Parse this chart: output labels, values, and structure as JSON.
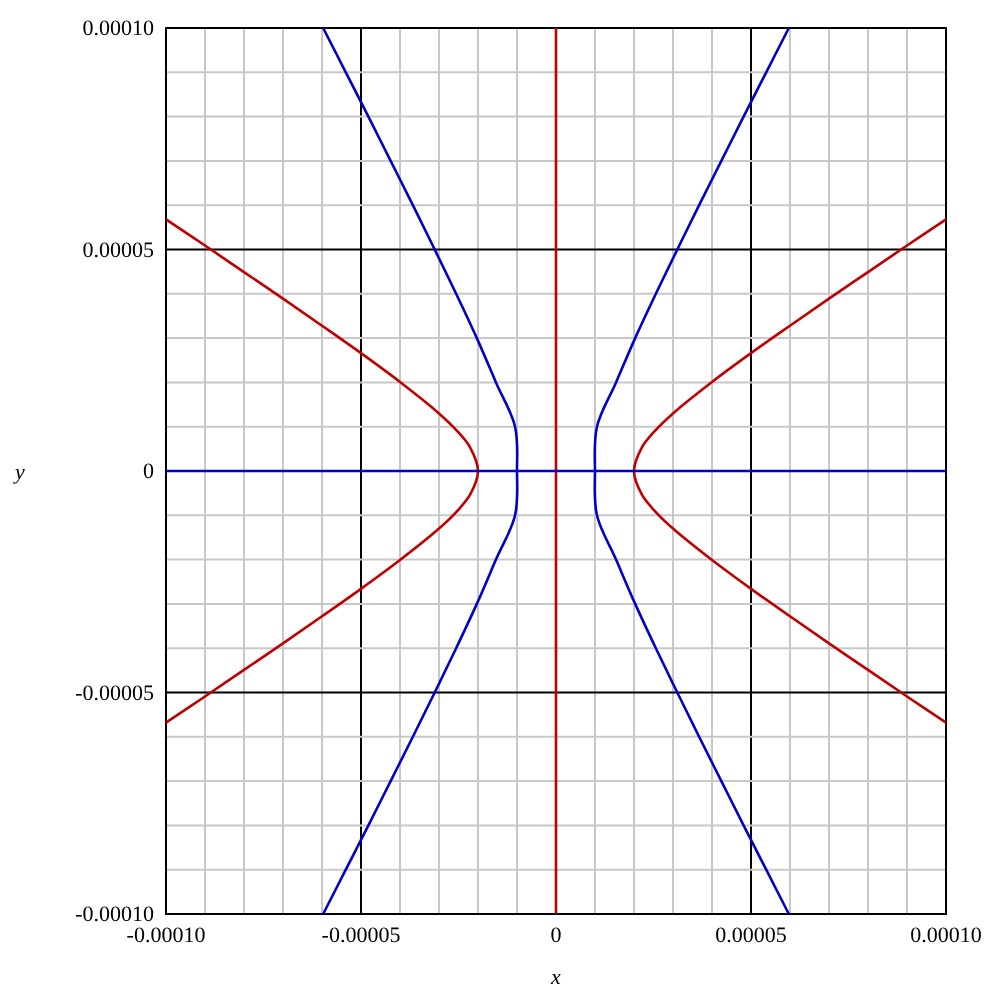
{
  "chart_data": {
    "type": "line",
    "xlabel": "x",
    "ylabel": "y",
    "xlim": [
      -0.0001,
      0.0001
    ],
    "ylim": [
      -0.0001,
      0.0001
    ],
    "xticks": [
      {
        "value": -0.0001,
        "label": "-0.00010"
      },
      {
        "value": -9e-05,
        "label": null
      },
      {
        "value": -8e-05,
        "label": null
      },
      {
        "value": -7e-05,
        "label": null
      },
      {
        "value": -6e-05,
        "label": null
      },
      {
        "value": -5e-05,
        "label": "-0.00005"
      },
      {
        "value": -4e-05,
        "label": null
      },
      {
        "value": -3e-05,
        "label": null
      },
      {
        "value": -2e-05,
        "label": null
      },
      {
        "value": -1e-05,
        "label": null
      },
      0,
      {
        "value": 1e-05,
        "label": null
      },
      {
        "value": 2e-05,
        "label": null
      },
      {
        "value": 3e-05,
        "label": null
      },
      {
        "value": 4e-05,
        "label": null
      },
      {
        "value": 5e-05,
        "label": "0.00005"
      },
      {
        "value": 6e-05,
        "label": null
      },
      {
        "value": 7e-05,
        "label": null
      },
      {
        "value": 8e-05,
        "label": null
      },
      {
        "value": 9e-05,
        "label": null
      },
      {
        "value": 0.0001,
        "label": "0.00010"
      }
    ],
    "yticks": [
      {
        "value": -0.0001,
        "label": "-0.00010"
      },
      {
        "value": -9e-05,
        "label": null
      },
      {
        "value": -8e-05,
        "label": null
      },
      {
        "value": -7e-05,
        "label": null
      },
      {
        "value": -6e-05,
        "label": null
      },
      {
        "value": -5e-05,
        "label": "-0.00005"
      },
      {
        "value": -4e-05,
        "label": null
      },
      {
        "value": -3e-05,
        "label": null
      },
      {
        "value": -2e-05,
        "label": null
      },
      {
        "value": -1e-05,
        "label": null
      },
      0,
      {
        "value": 1e-05,
        "label": null
      },
      {
        "value": 2e-05,
        "label": null
      },
      {
        "value": 3e-05,
        "label": null
      },
      {
        "value": 4e-05,
        "label": null
      },
      {
        "value": 5e-05,
        "label": "0.00005"
      },
      {
        "value": 6e-05,
        "label": null
      },
      {
        "value": 7e-05,
        "label": null
      },
      {
        "value": 8e-05,
        "label": null
      },
      {
        "value": 9e-05,
        "label": null
      },
      {
        "value": 0.0001,
        "label": "0.00010"
      }
    ],
    "grid": true,
    "marker": "none",
    "line_style": "solid",
    "series": [
      {
        "color": "#c00000",
        "x": [
          -0.0001,
          -9e-05,
          -8e-05,
          -7e-05,
          -6e-05,
          -5e-05,
          -4e-05,
          -3e-05,
          -2.5e-05,
          -2.2e-05,
          -2e-05,
          -2.2e-05,
          -2.5e-05,
          -3e-05,
          -4e-05,
          -5e-05,
          -6e-05,
          -7e-05,
          -8e-05,
          -9e-05,
          -0.0001
        ],
        "values": [
          5.68e-05,
          5.09e-05,
          4.49e-05,
          3.89e-05,
          3.28e-05,
          2.66e-05,
          2.01e-05,
          1.3e-05,
          8.7e-06,
          5.3e-06,
          0,
          -5.3e-06,
          -8.7e-06,
          -1.3e-05,
          -2.01e-05,
          -2.66e-05,
          -3.28e-05,
          -3.89e-05,
          -4.49e-05,
          -5.09e-05,
          -5.68e-05
        ]
      },
      {
        "color": "#c00000",
        "x": [
          0.0001,
          9e-05,
          8e-05,
          7e-05,
          6e-05,
          5e-05,
          4e-05,
          3e-05,
          2.5e-05,
          2.2e-05,
          2e-05,
          2.2e-05,
          2.5e-05,
          3e-05,
          4e-05,
          5e-05,
          6e-05,
          7e-05,
          8e-05,
          9e-05,
          0.0001
        ],
        "values": [
          5.68e-05,
          5.09e-05,
          4.49e-05,
          3.89e-05,
          3.28e-05,
          2.66e-05,
          2.01e-05,
          1.3e-05,
          8.7e-06,
          5.3e-06,
          0,
          -5.3e-06,
          -8.7e-06,
          -1.3e-05,
          -2.01e-05,
          -2.66e-05,
          -3.28e-05,
          -3.89e-05,
          -4.49e-05,
          -5.09e-05,
          -5.68e-05
        ]
      },
      {
        "color": "#0000c8",
        "x": [
          -5.97e-05,
          -5.39e-05,
          -4.81e-05,
          -4.24e-05,
          -3.67e-05,
          -3.11e-05,
          -2.56e-05,
          -2.03e-05,
          -1.54e-05,
          -1.05e-05,
          -1e-05,
          -1.05e-05,
          -1.54e-05,
          -2.03e-05,
          -2.56e-05,
          -3.11e-05,
          -3.67e-05,
          -4.24e-05,
          -4.81e-05,
          -5.39e-05,
          -5.97e-05
        ],
        "values": [
          0.0001,
          9e-05,
          8e-05,
          7e-05,
          6e-05,
          5e-05,
          4e-05,
          3e-05,
          2e-05,
          1e-05,
          0,
          -1e-05,
          -2e-05,
          -3e-05,
          -4e-05,
          -5e-05,
          -6e-05,
          -7e-05,
          -8e-05,
          -9e-05,
          -0.0001
        ]
      },
      {
        "color": "#0000c8",
        "x": [
          5.97e-05,
          5.39e-05,
          4.81e-05,
          4.24e-05,
          3.67e-05,
          3.11e-05,
          2.56e-05,
          2.03e-05,
          1.54e-05,
          1.05e-05,
          1e-05,
          1.05e-05,
          1.54e-05,
          2.03e-05,
          2.56e-05,
          3.11e-05,
          3.67e-05,
          4.24e-05,
          4.81e-05,
          5.39e-05,
          5.97e-05
        ],
        "values": [
          0.0001,
          9e-05,
          8e-05,
          7e-05,
          6e-05,
          5e-05,
          4e-05,
          3e-05,
          2e-05,
          1e-05,
          0,
          -1e-05,
          -2e-05,
          -3e-05,
          -4e-05,
          -5e-05,
          -6e-05,
          -7e-05,
          -8e-05,
          -9e-05,
          -0.0001
        ]
      },
      {
        "color": "#c00000",
        "x": [
          0,
          0
        ],
        "values": [
          -0.0001,
          0.0001
        ]
      },
      {
        "color": "#0000c8",
        "x": [
          -0.0001,
          0.0001
        ],
        "values": [
          0,
          0
        ]
      }
    ]
  }
}
